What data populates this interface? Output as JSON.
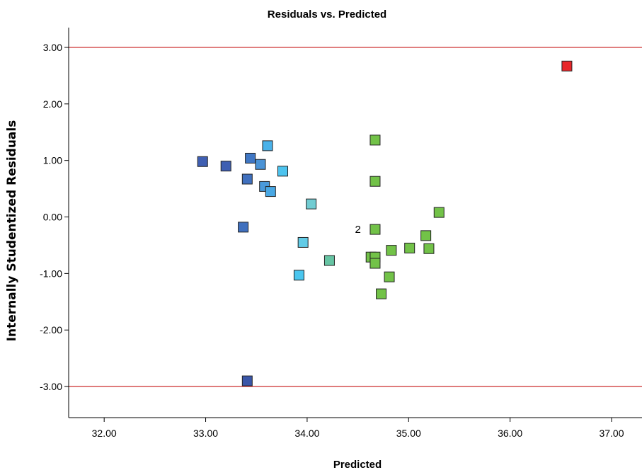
{
  "chart_data": {
    "type": "scatter",
    "title": "Residuals vs. Predicted",
    "xlabel": "Predicted",
    "ylabel": "Internally Studentized Residuals",
    "xlim": [
      31.65,
      37.3
    ],
    "ylim": [
      -3.55,
      3.35
    ],
    "xticks": [
      32.0,
      33.0,
      34.0,
      35.0,
      36.0,
      37.0
    ],
    "xtick_labels": [
      "32.00",
      "33.00",
      "34.00",
      "35.00",
      "36.00",
      "37.00"
    ],
    "yticks": [
      3.0,
      2.0,
      1.0,
      0.0,
      -1.0,
      -2.0,
      -3.0
    ],
    "ytick_labels": [
      "3.00",
      "2.00",
      "1.00",
      "0.00",
      "-1.00",
      "-2.00",
      "-3.00"
    ],
    "grid": false,
    "reference_lines": [
      {
        "axis": "y",
        "value": 3.0,
        "color": "#d04040"
      },
      {
        "axis": "y",
        "value": -3.0,
        "color": "#d04040"
      }
    ],
    "annotations": [
      {
        "text": "2",
        "x": 34.53,
        "y": -0.22
      }
    ],
    "points": [
      {
        "x": 32.97,
        "y": 0.98,
        "color": "#3f5fb2"
      },
      {
        "x": 33.2,
        "y": 0.9,
        "color": "#3f5fb2"
      },
      {
        "x": 33.41,
        "y": 0.67,
        "color": "#4070be"
      },
      {
        "x": 33.44,
        "y": 1.04,
        "color": "#4077c4"
      },
      {
        "x": 33.37,
        "y": -0.18,
        "color": "#4070be"
      },
      {
        "x": 33.41,
        "y": -2.9,
        "color": "#3a56a8"
      },
      {
        "x": 33.54,
        "y": 0.93,
        "color": "#4a93d6"
      },
      {
        "x": 33.58,
        "y": 0.54,
        "color": "#4a9adb"
      },
      {
        "x": 33.61,
        "y": 1.26,
        "color": "#49b2ea"
      },
      {
        "x": 33.64,
        "y": 0.45,
        "color": "#49a8e4"
      },
      {
        "x": 33.76,
        "y": 0.81,
        "color": "#4dc3ee"
      },
      {
        "x": 33.92,
        "y": -1.03,
        "color": "#4ac6ef"
      },
      {
        "x": 33.96,
        "y": -0.45,
        "color": "#62cbe6"
      },
      {
        "x": 34.04,
        "y": 0.23,
        "color": "#71ccd2"
      },
      {
        "x": 34.22,
        "y": -0.77,
        "color": "#66c4a3"
      },
      {
        "x": 34.67,
        "y": 1.36,
        "color": "#72c248"
      },
      {
        "x": 34.67,
        "y": 0.63,
        "color": "#72c248"
      },
      {
        "x": 34.67,
        "y": -0.22,
        "color": "#72c248"
      },
      {
        "x": 34.63,
        "y": -0.71,
        "color": "#72c248"
      },
      {
        "x": 34.67,
        "y": -0.71,
        "color": "#72c248"
      },
      {
        "x": 34.67,
        "y": -0.82,
        "color": "#72c248"
      },
      {
        "x": 34.73,
        "y": -1.36,
        "color": "#72c248"
      },
      {
        "x": 34.81,
        "y": -1.06,
        "color": "#72c248"
      },
      {
        "x": 34.83,
        "y": -0.59,
        "color": "#72c248"
      },
      {
        "x": 35.01,
        "y": -0.55,
        "color": "#72c248"
      },
      {
        "x": 35.17,
        "y": -0.33,
        "color": "#72c248"
      },
      {
        "x": 35.2,
        "y": -0.56,
        "color": "#72c248"
      },
      {
        "x": 35.3,
        "y": 0.08,
        "color": "#72c248"
      },
      {
        "x": 36.56,
        "y": 2.67,
        "color": "#e8272a"
      }
    ],
    "colors": {
      "axis": "#000000",
      "reference_line": "#d04040",
      "marker_edge": "#222222"
    }
  }
}
